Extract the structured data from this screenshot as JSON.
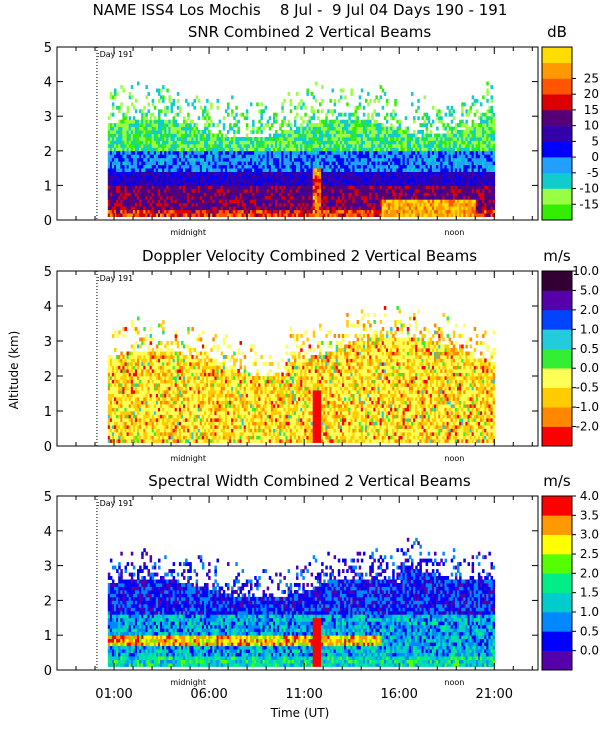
{
  "chart_data": {
    "type": "heatmap",
    "title": "NAME ISS4 Los Mochis    8 Jul -  9 Jul 04 Days 190 - 191",
    "xlabel": "Time (UT)",
    "ylabel": "Altitude (km)",
    "x_ticks": [
      "01:00",
      "06:00",
      "11:00",
      "16:00",
      "21:00"
    ],
    "x_annotations": [
      "midnight",
      "noon"
    ],
    "day_marker": ":Day 191",
    "data_span_hours": [
      0.67,
      21.0
    ],
    "panels": [
      {
        "title": "SNR Combined 2 Vertical Beams",
        "unit": "dB",
        "ylim": [
          0,
          5
        ],
        "y_ticks": [
          "0",
          "1",
          "2",
          "3",
          "4",
          "5"
        ],
        "colorbar": {
          "levels": [
            "-15",
            "-10",
            "-5",
            "0",
            "5",
            "10",
            "15",
            "20",
            "25"
          ],
          "colors": [
            "#33ee00",
            "#99ff44",
            "#11cccc",
            "#22a0ff",
            "#0000ff",
            "#3300aa",
            "#550077",
            "#dd0000",
            "#ff5500",
            "#ff9900",
            "#ffdd00"
          ]
        }
      },
      {
        "title": "Doppler Velocity Combined 2 Vertical Beams",
        "unit": "m/s",
        "ylim": [
          0,
          5
        ],
        "y_ticks": [
          "0",
          "1",
          "2",
          "3",
          "4",
          "5"
        ],
        "colorbar": {
          "levels": [
            "-2.0",
            "-1.0",
            "-0.5",
            "0.0",
            "0.5",
            "1.0",
            "2.0",
            "5.0",
            "10.0"
          ],
          "colors": [
            "#ff0000",
            "#ff8800",
            "#ffcc00",
            "#ffff55",
            "#33ee33",
            "#22ccdd",
            "#0044ff",
            "#5500aa",
            "#330033"
          ]
        }
      },
      {
        "title": "Spectral Width Combined 2 Vertical Beams",
        "unit": "m/s",
        "ylim": [
          0,
          5
        ],
        "y_ticks": [
          "0",
          "1",
          "2",
          "3",
          "4",
          "5"
        ],
        "colorbar": {
          "levels": [
            "0.0",
            "0.5",
            "1.0",
            "1.5",
            "2.0",
            "2.5",
            "3.0",
            "3.5",
            "4.0"
          ],
          "colors": [
            "#5500aa",
            "#0000ff",
            "#0088ff",
            "#00cccc",
            "#00ee88",
            "#55ff00",
            "#ffff00",
            "#ff9900",
            "#ff0000"
          ]
        }
      }
    ]
  }
}
